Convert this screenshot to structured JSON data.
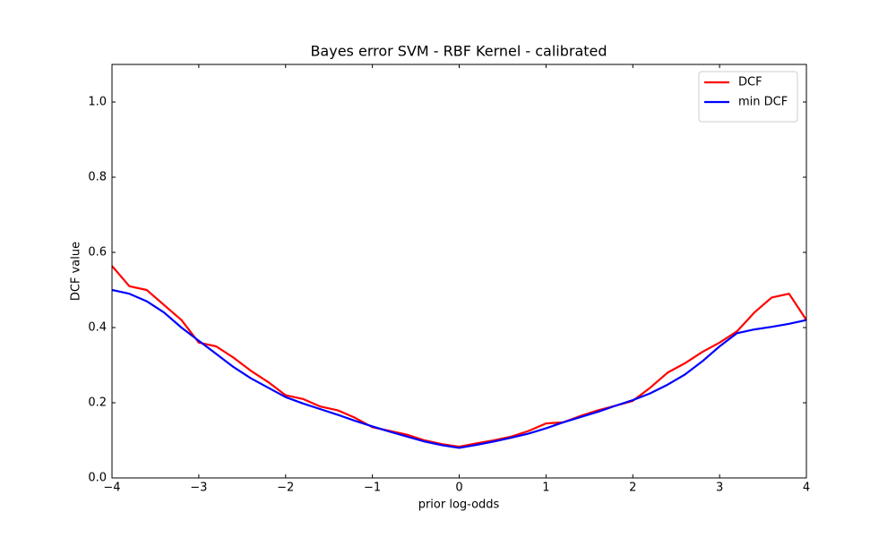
{
  "chart_data": {
    "type": "line",
    "title": "Bayes error SVM - RBF Kernel - calibrated",
    "xlabel": "prior log-odds",
    "ylabel": "DCF value",
    "x": [
      -4,
      -3.8,
      -3.6,
      -3.4,
      -3.2,
      -3,
      -2.8,
      -2.6,
      -2.4,
      -2.2,
      -2,
      -1.8,
      -1.6,
      -1.4,
      -1.2,
      -1,
      -0.8,
      -0.6,
      -0.4,
      -0.2,
      0,
      0.2,
      0.4,
      0.6,
      0.8,
      1,
      1.2,
      1.4,
      1.6,
      1.8,
      2,
      2.2,
      2.4,
      2.6,
      2.8,
      3,
      3.2,
      3.4,
      3.6,
      3.8,
      4
    ],
    "series": [
      {
        "name": "DCF",
        "color": "#ff0000",
        "values": [
          0.564,
          0.51,
          0.5,
          0.46,
          0.42,
          0.36,
          0.35,
          0.32,
          0.285,
          0.255,
          0.22,
          0.21,
          0.19,
          0.18,
          0.16,
          0.135,
          0.125,
          0.115,
          0.1,
          0.09,
          0.083,
          0.092,
          0.1,
          0.11,
          0.125,
          0.145,
          0.148,
          0.165,
          0.18,
          0.192,
          0.205,
          0.24,
          0.28,
          0.305,
          0.335,
          0.36,
          0.39,
          0.44,
          0.48,
          0.49,
          0.42
        ]
      },
      {
        "name": "min DCF",
        "color": "#0000ff",
        "values": [
          0.5,
          0.49,
          0.47,
          0.44,
          0.4,
          0.365,
          0.33,
          0.295,
          0.265,
          0.24,
          0.215,
          0.198,
          0.183,
          0.168,
          0.152,
          0.137,
          0.123,
          0.11,
          0.097,
          0.087,
          0.08,
          0.088,
          0.097,
          0.107,
          0.118,
          0.132,
          0.148,
          0.162,
          0.176,
          0.192,
          0.207,
          0.225,
          0.248,
          0.275,
          0.31,
          0.35,
          0.385,
          0.395,
          0.402,
          0.41,
          0.42
        ]
      }
    ],
    "xlim": [
      -4,
      4
    ],
    "ylim": [
      0,
      1.1
    ],
    "xticks": [
      {
        "value": -4,
        "label": "−4"
      },
      {
        "value": -3,
        "label": "−3"
      },
      {
        "value": -2,
        "label": "−2"
      },
      {
        "value": -1,
        "label": "−1"
      },
      0,
      1,
      2,
      3,
      4
    ],
    "yticks": [
      {
        "value": 0,
        "label": "0.0"
      },
      0.2,
      0.4,
      0.6,
      0.8,
      {
        "value": 1,
        "label": "1.0"
      }
    ],
    "grid": false,
    "legend": "upper right"
  }
}
